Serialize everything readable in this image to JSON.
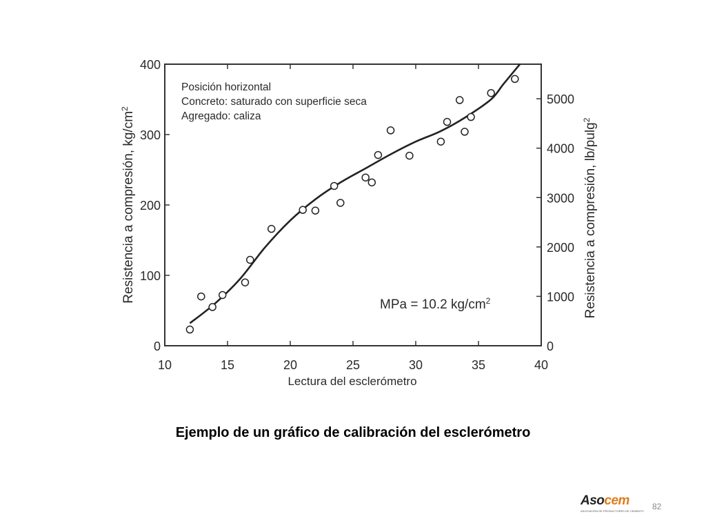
{
  "chart_data": {
    "type": "scatter",
    "xlabel": "Lectura del esclerómetro",
    "ylabel_left": "Resistencia a compresión, kg/cm",
    "ylabel_left_sup": "2",
    "ylabel_right": "Resistencia a compresión, lb/pulg",
    "ylabel_right_sup": "2",
    "xlim": [
      10,
      40
    ],
    "ylim": [
      0,
      400
    ],
    "ylim_right": [
      0,
      5700
    ],
    "x_ticks": [
      10,
      15,
      20,
      25,
      30,
      35,
      40
    ],
    "y_ticks": [
      0,
      100,
      200,
      300,
      400
    ],
    "y_ticks_right": [
      0,
      1000,
      2000,
      3000,
      4000,
      5000
    ],
    "grid": false,
    "annotations": [
      "Posición horizontal",
      "Concreto: saturado con superficie seca",
      "Agregado: caliza"
    ],
    "conversion_note": "MPa = 10.2 kg/cm",
    "conversion_note_sup": "2",
    "points": [
      [
        12,
        23
      ],
      [
        12.9,
        70
      ],
      [
        13.8,
        55
      ],
      [
        14.6,
        72
      ],
      [
        16.4,
        90
      ],
      [
        16.8,
        122
      ],
      [
        18.5,
        166
      ],
      [
        21,
        193
      ],
      [
        22,
        192
      ],
      [
        23.5,
        227
      ],
      [
        24,
        203
      ],
      [
        26,
        239
      ],
      [
        26.5,
        232
      ],
      [
        27,
        271
      ],
      [
        28,
        306
      ],
      [
        29.5,
        270
      ],
      [
        32,
        290
      ],
      [
        32.5,
        318
      ],
      [
        33.5,
        349
      ],
      [
        33.9,
        304
      ],
      [
        34.4,
        325
      ],
      [
        36,
        359
      ],
      [
        37.9,
        379
      ]
    ],
    "fit_line": [
      [
        12,
        32
      ],
      [
        14,
        60
      ],
      [
        16,
        95
      ],
      [
        18,
        140
      ],
      [
        20,
        178
      ],
      [
        22,
        208
      ],
      [
        24,
        232
      ],
      [
        26,
        252
      ],
      [
        28,
        272
      ],
      [
        30,
        290
      ],
      [
        32,
        305
      ],
      [
        34,
        325
      ],
      [
        36,
        350
      ],
      [
        37,
        372
      ],
      [
        38.3,
        400
      ]
    ]
  },
  "caption": "Ejemplo de un gráfico de calibración del esclerómetro",
  "logo": {
    "text_main": "Aso",
    "text_accent": "cem",
    "tagline": "ASOCIACIÓN DE PRODUCTORES DE CEMENTO"
  },
  "page_number": "82"
}
